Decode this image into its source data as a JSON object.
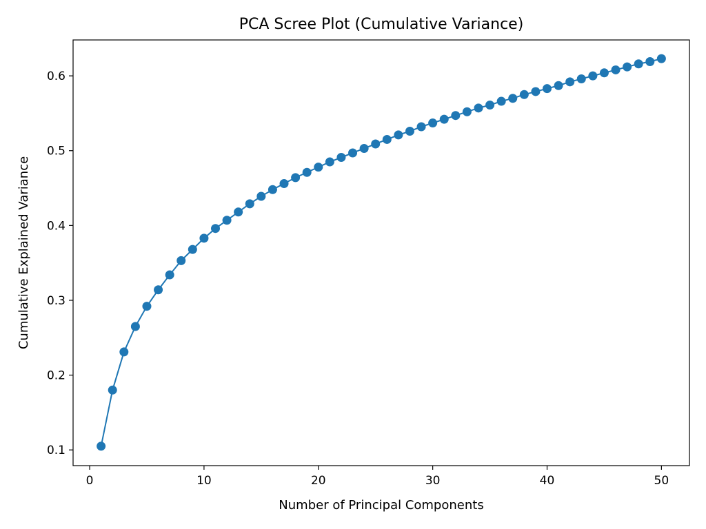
{
  "chart_data": {
    "type": "line",
    "title": "PCA Scree Plot (Cumulative Variance)",
    "xlabel": "Number of Principal Components",
    "ylabel": "Cumulative Explained Variance",
    "xlim": [
      -1.45,
      52.45
    ],
    "ylim": [
      0.079,
      0.648
    ],
    "xticks": [
      0,
      10,
      20,
      30,
      40,
      50
    ],
    "xtick_labels": [
      "0",
      "10",
      "20",
      "30",
      "40",
      "50"
    ],
    "yticks": [
      0.1,
      0.2,
      0.3,
      0.4,
      0.5,
      0.6
    ],
    "ytick_labels": [
      "0.1",
      "0.2",
      "0.3",
      "0.4",
      "0.5",
      "0.6"
    ],
    "marker": "circle",
    "grid": false,
    "series": [
      {
        "name": "Cumulative Explained Variance",
        "color": "#1f77b4",
        "x": [
          1,
          2,
          3,
          4,
          5,
          6,
          7,
          8,
          9,
          10,
          11,
          12,
          13,
          14,
          15,
          16,
          17,
          18,
          19,
          20,
          21,
          22,
          23,
          24,
          25,
          26,
          27,
          28,
          29,
          30,
          31,
          32,
          33,
          34,
          35,
          36,
          37,
          38,
          39,
          40,
          41,
          42,
          43,
          44,
          45,
          46,
          47,
          48,
          49,
          50
        ],
        "y": [
          0.105,
          0.18,
          0.231,
          0.265,
          0.292,
          0.314,
          0.334,
          0.353,
          0.368,
          0.383,
          0.396,
          0.407,
          0.418,
          0.429,
          0.439,
          0.448,
          0.456,
          0.464,
          0.471,
          0.478,
          0.485,
          0.491,
          0.497,
          0.503,
          0.509,
          0.515,
          0.521,
          0.526,
          0.532,
          0.537,
          0.542,
          0.547,
          0.552,
          0.557,
          0.561,
          0.566,
          0.57,
          0.575,
          0.579,
          0.583,
          0.587,
          0.592,
          0.596,
          0.6,
          0.604,
          0.608,
          0.612,
          0.616,
          0.619,
          0.623
        ]
      }
    ]
  }
}
